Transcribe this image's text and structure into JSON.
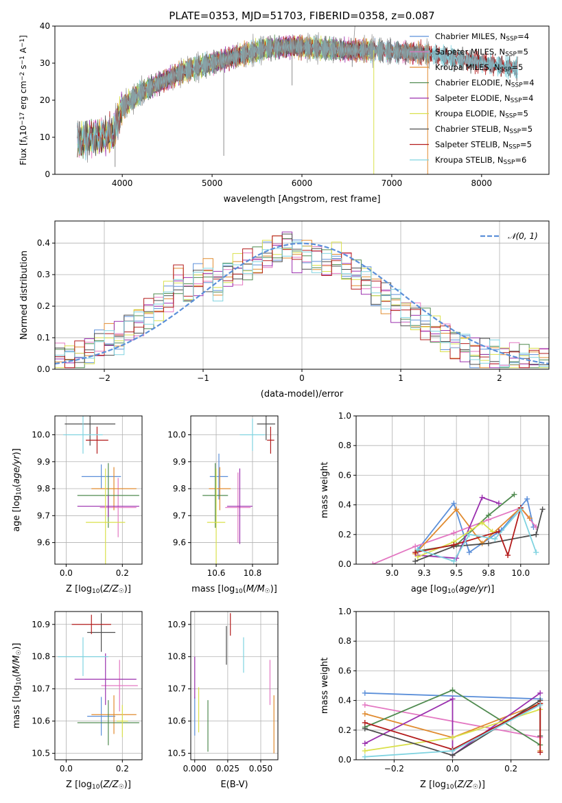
{
  "figure": {
    "title": "PLATE=0353, MJD=51703, FIBERID=0358, z=0.087"
  },
  "colors": {
    "chabrier_miles": "#5b8fd9",
    "salpeter_miles": "#e377c2",
    "kroupa_miles": "#e08a2e",
    "chabrier_elodie": "#4f8a4f",
    "salpeter_elodie": "#9a2fae",
    "kroupa_elodie": "#d9e04a",
    "chabrier_stelib": "#4d4d4d",
    "salpeter_stelib": "#b31b1b",
    "kroupa_stelib": "#7fd3e0",
    "observed": "#8c8c8c"
  },
  "legend": {
    "entries": [
      {
        "base": "Chabrier MILES, N",
        "sub": "SSP",
        "tail": "=4",
        "color_key": "chabrier_miles"
      },
      {
        "base": "Salpeter MILES, N",
        "sub": "SSP",
        "tail": "=5",
        "color_key": "salpeter_miles"
      },
      {
        "base": "Kroupa MILES, N",
        "sub": "SSP",
        "tail": "=5",
        "color_key": "kroupa_miles"
      },
      {
        "base": "Chabrier ELODIE, N",
        "sub": "SSP",
        "tail": "=4",
        "color_key": "chabrier_elodie"
      },
      {
        "base": "Salpeter ELODIE, N",
        "sub": "SSP",
        "tail": "=4",
        "color_key": "salpeter_elodie"
      },
      {
        "base": "Kroupa ELODIE, N",
        "sub": "SSP",
        "tail": "=5",
        "color_key": "kroupa_elodie"
      },
      {
        "base": "Chabrier STELIB, N",
        "sub": "SSP",
        "tail": "=5",
        "color_key": "chabrier_stelib"
      },
      {
        "base": "Salpeter STELIB, N",
        "sub": "SSP",
        "tail": "=5",
        "color_key": "salpeter_stelib"
      },
      {
        "base": "Kroupa STELIB, N",
        "sub": "SSP",
        "tail": "=6",
        "color_key": "kroupa_stelib"
      }
    ],
    "normal_label": "𝒩(0, 1)"
  },
  "chart_data": [
    {
      "id": "spectrum",
      "type": "line",
      "xlabel": "wavelength [Angstrom, rest frame]",
      "ylabel": "Flux [f_λ 10^-17 erg cm^-2 s^-1 A^-1]",
      "xlim": [
        3250,
        8750
      ],
      "ylim": [
        0,
        40
      ],
      "xticks": [
        4000,
        5000,
        6000,
        7000,
        8000
      ],
      "yticks": [
        0,
        10,
        20,
        30,
        40
      ],
      "grid": false,
      "legend_position": "upper right",
      "continuum": {
        "x": [
          3500,
          3700,
          3900,
          4000,
          4200,
          4400,
          4700,
          5000,
          5300,
          5600,
          5900,
          6200,
          6500,
          6800,
          7100,
          7400
        ],
        "y": [
          9,
          10,
          11,
          18,
          22,
          24.5,
          28,
          30,
          32,
          34,
          34.5,
          34,
          33.5,
          33.5,
          33,
          32.5
        ]
      },
      "model_ranges": [
        {
          "series": "chabrier_miles",
          "x_end": 7400
        },
        {
          "series": "salpeter_miles",
          "x_end": 7400
        },
        {
          "series": "kroupa_miles",
          "x_end": 7420
        },
        {
          "series": "chabrier_elodie",
          "x_end": 6800
        },
        {
          "series": "salpeter_elodie",
          "x_end": 6800
        },
        {
          "series": "kroupa_elodie",
          "x_end": 6800
        },
        {
          "series": "chabrier_stelib",
          "x_end": 8400
        },
        {
          "series": "salpeter_stelib",
          "x_end": 8400
        },
        {
          "series": "kroupa_stelib",
          "x_end": 8400
        }
      ]
    },
    {
      "id": "residual-histogram",
      "type": "bar",
      "xlabel": "(data-model)/error",
      "ylabel": "Normed distribution",
      "xlim": [
        -2.5,
        2.5
      ],
      "ylim": [
        0,
        0.47
      ],
      "xticks": [
        -2,
        -1,
        0,
        1,
        2
      ],
      "yticks": [
        0.0,
        0.1,
        0.2,
        0.3,
        0.4
      ],
      "grid": true,
      "legend_position": "upper right",
      "bin_width": 0.1,
      "envelope": [
        0.04,
        0.035,
        0.04,
        0.06,
        0.075,
        0.09,
        0.1,
        0.13,
        0.155,
        0.18,
        0.2,
        0.23,
        0.28,
        0.25,
        0.28,
        0.3,
        0.27,
        0.3,
        0.32,
        0.33,
        0.34,
        0.36,
        0.38,
        0.4,
        0.36,
        0.37,
        0.35,
        0.33,
        0.35,
        0.32,
        0.3,
        0.28,
        0.25,
        0.23,
        0.2,
        0.18,
        0.16,
        0.14,
        0.12,
        0.1,
        0.08,
        0.07,
        0.055,
        0.045,
        0.04,
        0.035,
        0.03,
        0.03,
        0.03,
        0.03
      ],
      "normal": {
        "mean": 0,
        "sigma": 1,
        "peak": 0.399
      }
    },
    {
      "id": "age-vs-z",
      "type": "scatter",
      "xlabel": "Z [log10(Z/Z☉)]",
      "ylabel": "age [log10(age/yr)]",
      "xlim": [
        -0.04,
        0.27
      ],
      "ylim": [
        9.52,
        10.07
      ],
      "xticks": [
        0.0,
        0.2
      ],
      "yticks": [
        9.6,
        9.7,
        9.8,
        9.9,
        10.0
      ],
      "grid": true,
      "points": [
        {
          "series": "chabrier_miles",
          "x": 0.125,
          "y": 9.845,
          "xerr": 0.07,
          "yerr": 0.045
        },
        {
          "series": "salpeter_miles",
          "x": 0.185,
          "y": 9.73,
          "xerr": 0.065,
          "yerr": 0.11
        },
        {
          "series": "kroupa_miles",
          "x": 0.17,
          "y": 9.8,
          "xerr": 0.08,
          "yerr": 0.08
        },
        {
          "series": "chabrier_elodie",
          "x": 0.15,
          "y": 9.775,
          "xerr": 0.11,
          "yerr": 0.12
        },
        {
          "series": "salpeter_elodie",
          "x": 0.15,
          "y": 9.735,
          "xerr": 0.11,
          "yerr": 0.04
        },
        {
          "series": "kroupa_elodie",
          "x": 0.14,
          "y": 9.675,
          "xerr": 0.07,
          "yerr": 0.2
        },
        {
          "series": "chabrier_stelib",
          "x": 0.085,
          "y": 10.04,
          "xerr": 0.09,
          "yerr": 0.08
        },
        {
          "series": "salpeter_stelib",
          "x": 0.11,
          "y": 9.98,
          "xerr": 0.04,
          "yerr": 0.05
        },
        {
          "series": "kroupa_stelib",
          "x": 0.06,
          "y": 10.0,
          "xerr": 0.07,
          "yerr": 0.07
        }
      ]
    },
    {
      "id": "age-vs-mass",
      "type": "scatter",
      "xlabel": "mass [log10(M/M☉)]",
      "ylabel": "",
      "xlim": [
        10.46,
        10.94
      ],
      "ylim": [
        9.52,
        10.07
      ],
      "xticks": [
        10.6,
        10.8
      ],
      "yticks": [
        9.6,
        9.7,
        9.8,
        9.9,
        10.0
      ],
      "grid": true,
      "points": [
        {
          "series": "chabrier_miles",
          "x": 10.615,
          "y": 9.845,
          "xerr": 0.05,
          "yerr": 0.085
        },
        {
          "series": "salpeter_miles",
          "x": 10.72,
          "y": 9.73,
          "xerr": 0.07,
          "yerr": 0.13
        },
        {
          "series": "kroupa_miles",
          "x": 10.62,
          "y": 9.8,
          "xerr": 0.06,
          "yerr": 0.08
        },
        {
          "series": "chabrier_elodie",
          "x": 10.595,
          "y": 9.775,
          "xerr": 0.07,
          "yerr": 0.12
        },
        {
          "series": "salpeter_elodie",
          "x": 10.73,
          "y": 9.735,
          "xerr": 0.07,
          "yerr": 0.14
        },
        {
          "series": "kroupa_elodie",
          "x": 10.6,
          "y": 9.675,
          "xerr": 0.05,
          "yerr": 0.2
        },
        {
          "series": "chabrier_stelib",
          "x": 10.875,
          "y": 10.04,
          "xerr": 0.05,
          "yerr": 0.06
        },
        {
          "series": "salpeter_stelib",
          "x": 10.9,
          "y": 9.98,
          "xerr": 0.02,
          "yerr": 0.05
        },
        {
          "series": "kroupa_stelib",
          "x": 10.8,
          "y": 10.0,
          "xerr": 0.07,
          "yerr": 0.06
        }
      ]
    },
    {
      "id": "mass-weight-vs-age",
      "type": "line",
      "xlabel": "age [log10(age/yr)]",
      "ylabel": "mass weight",
      "xlim": [
        8.72,
        10.22
      ],
      "ylim": [
        0,
        1
      ],
      "xticks": [
        9.0,
        9.25,
        9.5,
        9.75,
        10.0
      ],
      "yticks": [
        0.0,
        0.2,
        0.4,
        0.6,
        0.8,
        1.0
      ],
      "grid": true,
      "series": [
        {
          "series": "chabrier_miles",
          "x": [
            9.2,
            9.48,
            9.6,
            9.85,
            10.05,
            10.1
          ],
          "y": [
            0.1,
            0.41,
            0.08,
            0.23,
            0.44,
            0.25
          ]
        },
        {
          "series": "salpeter_miles",
          "x": [
            8.85,
            9.18,
            9.48,
            9.75,
            10.0,
            10.12
          ],
          "y": [
            0.0,
            0.12,
            0.21,
            0.3,
            0.38,
            0.25
          ]
        },
        {
          "series": "kroupa_miles",
          "x": [
            9.18,
            9.5,
            9.7,
            10.0,
            10.07
          ],
          "y": [
            0.07,
            0.37,
            0.14,
            0.38,
            0.31
          ]
        },
        {
          "series": "chabrier_elodie",
          "x": [
            9.2,
            9.5,
            9.75,
            9.95
          ],
          "y": [
            0.09,
            0.13,
            0.33,
            0.47
          ]
        },
        {
          "series": "salpeter_elodie",
          "x": [
            9.2,
            9.5,
            9.7,
            9.83
          ],
          "y": [
            0.06,
            0.04,
            0.45,
            0.41
          ]
        },
        {
          "series": "kroupa_elodie",
          "x": [
            9.2,
            9.48,
            9.7,
            9.78
          ],
          "y": [
            0.05,
            0.15,
            0.28,
            0.22
          ]
        },
        {
          "series": "chabrier_stelib",
          "x": [
            9.18,
            9.48,
            9.75,
            10.12,
            10.17
          ],
          "y": [
            0.02,
            0.12,
            0.14,
            0.2,
            0.37
          ]
        },
        {
          "series": "salpeter_stelib",
          "x": [
            9.18,
            9.48,
            9.83,
            9.9,
            10.0
          ],
          "y": [
            0.08,
            0.13,
            0.22,
            0.06,
            0.38
          ]
        },
        {
          "series": "kroupa_stelib",
          "x": [
            9.2,
            9.48,
            9.6,
            9.8,
            10.0,
            10.12
          ],
          "y": [
            0.1,
            0.02,
            0.2,
            0.17,
            0.37,
            0.08
          ]
        }
      ]
    },
    {
      "id": "mass-vs-z",
      "type": "scatter",
      "xlabel": "Z [log10(Z/Z☉)]",
      "ylabel": "mass [log10(M/M☉)]",
      "xlim": [
        -0.04,
        0.27
      ],
      "ylim": [
        10.48,
        10.94
      ],
      "xticks": [
        0.0,
        0.2
      ],
      "yticks": [
        10.5,
        10.6,
        10.7,
        10.8,
        10.9
      ],
      "grid": true,
      "points": [
        {
          "series": "chabrier_miles",
          "x": 0.125,
          "y": 10.615,
          "xerr": 0.05,
          "yerr": 0.06
        },
        {
          "series": "salpeter_miles",
          "x": 0.19,
          "y": 10.71,
          "xerr": 0.065,
          "yerr": 0.08
        },
        {
          "series": "kroupa_miles",
          "x": 0.17,
          "y": 10.62,
          "xerr": 0.08,
          "yerr": 0.06
        },
        {
          "series": "chabrier_elodie",
          "x": 0.15,
          "y": 10.595,
          "xerr": 0.11,
          "yerr": 0.07
        },
        {
          "series": "salpeter_elodie",
          "x": 0.14,
          "y": 10.73,
          "xerr": 0.11,
          "yerr": 0.08
        },
        {
          "series": "kroupa_elodie",
          "x": 0.2,
          "y": 10.6,
          "xerr": 0.02,
          "yerr": 0.05
        },
        {
          "series": "chabrier_stelib",
          "x": 0.125,
          "y": 10.875,
          "xerr": 0.05,
          "yerr": 0.06
        },
        {
          "series": "salpeter_stelib",
          "x": 0.09,
          "y": 10.9,
          "xerr": 0.07,
          "yerr": 0.03
        },
        {
          "series": "kroupa_stelib",
          "x": 0.06,
          "y": 10.8,
          "xerr": 0.09,
          "yerr": 0.06
        }
      ]
    },
    {
      "id": "mass-vs-ebv",
      "type": "scatter",
      "xlabel": "E(B-V)",
      "ylabel": "",
      "xlim": [
        -0.003,
        0.063
      ],
      "ylim": [
        10.48,
        10.94
      ],
      "xticks": [
        0.0,
        0.025,
        0.05
      ],
      "yticks": [
        10.5,
        10.6,
        10.7,
        10.8,
        10.9
      ],
      "grid": true,
      "points": [
        {
          "series": "chabrier_miles",
          "x": 0.0,
          "y": 10.615,
          "xerr": 0,
          "yerr": 0.06
        },
        {
          "series": "salpeter_miles",
          "x": 0.057,
          "y": 10.72,
          "xerr": 0,
          "yerr": 0.07
        },
        {
          "series": "kroupa_miles",
          "x": 0.06,
          "y": 10.59,
          "xerr": 0,
          "yerr": 0.09
        },
        {
          "series": "chabrier_elodie",
          "x": 0.01,
          "y": 10.585,
          "xerr": 0,
          "yerr": 0.08
        },
        {
          "series": "salpeter_elodie",
          "x": 0.0,
          "y": 10.735,
          "xerr": 0,
          "yerr": 0.065
        },
        {
          "series": "kroupa_elodie",
          "x": 0.003,
          "y": 10.635,
          "xerr": 0,
          "yerr": 0.07
        },
        {
          "series": "chabrier_stelib",
          "x": 0.024,
          "y": 10.835,
          "xerr": 0,
          "yerr": 0.06
        },
        {
          "series": "salpeter_stelib",
          "x": 0.027,
          "y": 10.9,
          "xerr": 0,
          "yerr": 0.035
        },
        {
          "series": "kroupa_stelib",
          "x": 0.037,
          "y": 10.805,
          "xerr": 0,
          "yerr": 0.055
        }
      ]
    },
    {
      "id": "mass-weight-vs-z",
      "type": "line",
      "xlabel": "Z [log10(Z/Z☉)]",
      "ylabel": "mass weight",
      "xlim": [
        -0.33,
        0.33
      ],
      "ylim": [
        0,
        1
      ],
      "xticks": [
        -0.2,
        0.0,
        0.2
      ],
      "yticks": [
        0.0,
        0.2,
        0.4,
        0.6,
        0.8,
        1.0
      ],
      "grid": true,
      "series": [
        {
          "series": "chabrier_miles",
          "x": [
            -0.3,
            0.3
          ],
          "y": [
            0.45,
            0.41
          ]
        },
        {
          "series": "salpeter_miles",
          "x": [
            -0.3,
            0.3
          ],
          "y": [
            0.37,
            0.15
          ]
        },
        {
          "series": "kroupa_miles",
          "x": [
            -0.3,
            0.0,
            0.3,
            0.3
          ],
          "y": [
            0.31,
            0.15,
            0.38,
            0.06
          ]
        },
        {
          "series": "chabrier_elodie",
          "x": [
            -0.3,
            0.0,
            0.3
          ],
          "y": [
            0.22,
            0.47,
            0.1
          ]
        },
        {
          "series": "salpeter_elodie",
          "x": [
            -0.3,
            0.0,
            0.0,
            0.3
          ],
          "y": [
            0.11,
            0.41,
            0.03,
            0.45
          ]
        },
        {
          "series": "kroupa_elodie",
          "x": [
            -0.3,
            0.0,
            0.3
          ],
          "y": [
            0.06,
            0.15,
            0.34
          ]
        },
        {
          "series": "chabrier_stelib",
          "x": [
            -0.3,
            0.0,
            0.3,
            0.3
          ],
          "y": [
            0.21,
            0.03,
            0.4,
            0.16
          ]
        },
        {
          "series": "salpeter_stelib",
          "x": [
            -0.3,
            0.0,
            0.3,
            0.3
          ],
          "y": [
            0.25,
            0.07,
            0.38,
            0.05
          ]
        },
        {
          "series": "kroupa_stelib",
          "x": [
            -0.3,
            0.0,
            0.3
          ],
          "y": [
            0.02,
            0.06,
            0.37
          ]
        }
      ]
    }
  ]
}
